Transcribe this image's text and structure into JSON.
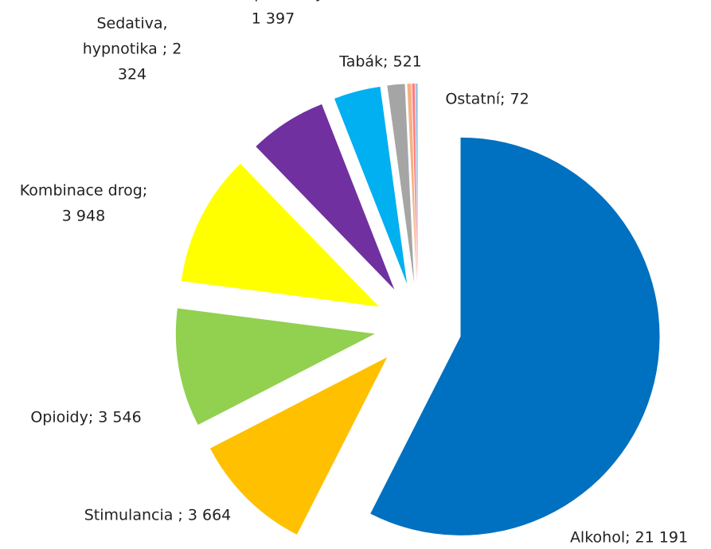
{
  "chart_data": {
    "type": "pie",
    "exploded": true,
    "labels": [
      [
        "Alkohol; 21 191"
      ],
      [
        "Stimulancia ; 3 664"
      ],
      [
        "Opioidy; 3 546"
      ],
      [
        "Kombinace drog;",
        "3 948"
      ],
      [
        "Sedativa,",
        "hypnotika ; 2",
        "324"
      ],
      [
        "Konopné látky;",
        "1 397"
      ],
      [
        "Tabák; 521"
      ],
      null,
      null,
      [
        "Ostatní; 72"
      ]
    ],
    "values": [
      21191,
      3664,
      3546,
      3948,
      2324,
      1397,
      521,
      120,
      80,
      72
    ],
    "colors": [
      "#0070c0",
      "#ffc000",
      "#92d050",
      "#ffff00",
      "#7030a0",
      "#00b0f0",
      "#a5a5a5",
      "#f4b183",
      "#ff7c80",
      "#9dc3e6"
    ]
  }
}
